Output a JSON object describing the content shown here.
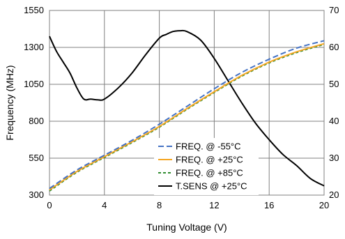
{
  "chart_data": {
    "type": "line",
    "xlabel": "Tuning Voltage (V)",
    "ylabel": "Frequency (MHz)",
    "xlim": [
      0,
      20
    ],
    "ylim": [
      300,
      1550
    ],
    "y2lim": [
      20,
      70
    ],
    "xticks": [
      0,
      4,
      8,
      12,
      16,
      20
    ],
    "yticks": [
      300,
      550,
      800,
      1050,
      1300,
      1550
    ],
    "y2ticks": [
      20,
      30,
      40,
      50,
      60,
      70
    ],
    "grid": true,
    "legend_position": "bottom-right",
    "series": [
      {
        "name": "FREQ. @ -55°C",
        "axis": "left",
        "color": "#4472C4",
        "dash": "8,4",
        "x": [
          0,
          2,
          4,
          6,
          8,
          10,
          12,
          14,
          16,
          18,
          20
        ],
        "y": [
          345,
          470,
          570,
          670,
          780,
          900,
          1020,
          1130,
          1220,
          1295,
          1345
        ]
      },
      {
        "name": "FREQ. @ +25°C",
        "axis": "left",
        "color": "#F5A623",
        "dash": "",
        "x": [
          0,
          2,
          4,
          6,
          8,
          10,
          12,
          14,
          16,
          18,
          20
        ],
        "y": [
          335,
          460,
          560,
          660,
          765,
          885,
          1000,
          1110,
          1200,
          1270,
          1325
        ]
      },
      {
        "name": "FREQ. @ +85°C",
        "axis": "left",
        "color": "#2E8B2E",
        "dash": "4,3",
        "x": [
          0,
          2,
          4,
          6,
          8,
          10,
          12,
          14,
          16,
          18,
          20
        ],
        "y": [
          328,
          455,
          555,
          655,
          760,
          880,
          995,
          1105,
          1195,
          1265,
          1320
        ]
      },
      {
        "name": "T.SENS @ +25°C",
        "axis": "right",
        "color": "#000000",
        "dash": "",
        "x": [
          0,
          0.5,
          1,
          1.5,
          2,
          2.5,
          3,
          3.5,
          4,
          5,
          6,
          7,
          8,
          8.5,
          9,
          9.5,
          10,
          11,
          12,
          13,
          14,
          15,
          16,
          17,
          18,
          19,
          20
        ],
        "y": [
          63,
          59,
          56,
          53,
          49,
          46,
          46,
          45.8,
          46,
          49,
          53,
          58,
          62.5,
          63.5,
          64.3,
          64.5,
          64.3,
          62,
          57,
          51,
          45,
          39.5,
          35,
          31,
          28,
          24.5,
          22.5
        ]
      }
    ]
  }
}
